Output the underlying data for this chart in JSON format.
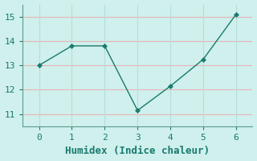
{
  "x": [
    0,
    1,
    2,
    3,
    4,
    5,
    6
  ],
  "y": [
    13.0,
    13.8,
    13.8,
    11.15,
    12.15,
    13.25,
    15.1
  ],
  "line_color": "#1a7a6e",
  "marker": "D",
  "marker_size": 3,
  "background_color": "#cff0ec",
  "grid_h_color": "#e8b4b8",
  "grid_v_color": "#b8ddd8",
  "xlabel": "Humidex (Indice chaleur)",
  "xlabel_fontsize": 9,
  "xlim": [
    -0.5,
    6.5
  ],
  "ylim": [
    10.5,
    15.5
  ],
  "xticks": [
    0,
    1,
    2,
    3,
    4,
    5,
    6
  ],
  "yticks": [
    11,
    12,
    13,
    14,
    15
  ],
  "tick_fontsize": 8,
  "tick_color": "#1a7a6e",
  "spine_color": "#5a9a90",
  "label_color": "#1a7a6e"
}
